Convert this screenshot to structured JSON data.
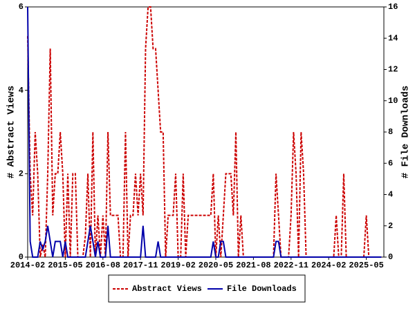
{
  "chart_data": {
    "type": "line",
    "x": [
      "2014-02",
      "2014-03",
      "2014-04",
      "2014-05",
      "2014-06",
      "2014-07",
      "2014-08",
      "2014-09",
      "2014-10",
      "2014-11",
      "2014-12",
      "2015-01",
      "2015-02",
      "2015-03",
      "2015-04",
      "2015-05",
      "2015-06",
      "2015-07",
      "2015-08",
      "2015-09",
      "2015-10",
      "2015-11",
      "2015-12",
      "2016-01",
      "2016-02",
      "2016-03",
      "2016-04",
      "2016-05",
      "2016-06",
      "2016-07",
      "2016-08",
      "2016-09",
      "2016-10",
      "2016-11",
      "2016-12",
      "2017-01",
      "2017-02",
      "2017-03",
      "2017-04",
      "2017-05",
      "2017-06",
      "2017-07",
      "2017-08",
      "2017-09",
      "2017-10",
      "2017-11",
      "2017-12",
      "2018-01",
      "2018-02",
      "2018-03",
      "2018-04",
      "2018-05",
      "2018-06",
      "2018-07",
      "2018-08",
      "2018-09",
      "2018-10",
      "2018-11",
      "2018-12",
      "2019-01",
      "2019-02",
      "2019-03",
      "2019-04",
      "2019-05",
      "2019-06",
      "2019-07",
      "2019-08",
      "2019-09",
      "2019-10",
      "2019-11",
      "2019-12",
      "2020-01",
      "2020-02",
      "2020-03",
      "2020-04",
      "2020-05",
      "2020-06",
      "2020-07",
      "2020-08",
      "2020-09",
      "2020-10",
      "2020-11",
      "2020-12",
      "2021-01",
      "2021-02",
      "2021-03",
      "2021-04",
      "2021-05",
      "2021-06",
      "2021-07",
      "2021-08",
      "2021-09",
      "2021-10",
      "2021-11",
      "2021-12",
      "2022-01",
      "2022-02",
      "2022-03",
      "2022-04",
      "2022-05",
      "2022-06",
      "2022-07",
      "2022-08",
      "2022-09",
      "2022-10",
      "2022-11",
      "2022-12",
      "2023-01",
      "2023-02",
      "2023-03",
      "2023-04",
      "2023-05",
      "2023-06",
      "2023-07",
      "2023-08",
      "2023-09",
      "2023-10",
      "2023-11",
      "2023-12",
      "2024-01",
      "2024-02",
      "2024-03",
      "2024-04",
      "2024-05",
      "2024-06",
      "2024-07",
      "2024-08",
      "2024-09",
      "2024-10",
      "2024-11",
      "2024-12",
      "2025-01",
      "2025-02",
      "2025-03",
      "2025-04",
      "2025-05",
      "2025-06",
      "2025-07",
      "2025-08",
      "2025-09",
      "2025-10",
      "2025-11"
    ],
    "series": [
      {
        "name": "Abstract Views",
        "color": "#cc0000",
        "dash": true,
        "values": [
          5.3,
          2,
          1,
          3,
          2,
          0,
          0.3,
          0,
          2,
          5,
          1,
          2,
          2,
          3,
          2,
          0,
          2,
          0,
          2,
          2,
          0,
          0,
          0,
          0.5,
          2,
          0,
          3,
          0,
          1,
          0,
          1,
          0,
          3,
          1,
          1,
          1,
          1,
          0,
          0,
          3,
          0,
          1,
          1,
          2,
          1,
          2,
          1,
          5,
          6,
          6,
          5,
          5,
          4,
          3,
          3,
          0,
          1,
          1,
          1,
          2,
          0,
          0,
          2,
          0,
          1,
          1,
          1,
          1,
          1,
          1,
          1,
          1,
          1,
          1,
          2,
          0,
          1,
          0,
          1,
          2,
          2,
          2,
          1,
          3,
          0,
          1,
          0,
          0,
          0,
          0,
          0,
          0,
          0,
          0,
          0,
          0,
          0,
          0,
          0,
          2,
          1,
          0,
          0,
          0,
          0,
          1,
          3,
          2,
          0,
          3,
          2,
          0,
          0,
          0,
          0,
          0,
          0,
          0,
          0,
          0,
          0,
          0,
          0,
          1,
          0,
          0,
          2,
          0,
          0,
          0,
          0,
          0,
          0,
          0,
          0,
          1,
          0,
          0,
          0,
          0,
          0,
          0
        ]
      },
      {
        "name": "File Downloads",
        "color": "#0000aa",
        "dash": false,
        "axis": "y2",
        "values": [
          16,
          1,
          0,
          0,
          0,
          1,
          0.5,
          1,
          2,
          1,
          0,
          1,
          1,
          1,
          0,
          1,
          0,
          0,
          0,
          0,
          0,
          0,
          0,
          0,
          1,
          2,
          1,
          0,
          1,
          0,
          0,
          0,
          2,
          0,
          0,
          0,
          0,
          0,
          0,
          0,
          0,
          0,
          0,
          0,
          0,
          0,
          2,
          0,
          0,
          0,
          0,
          0,
          1,
          0,
          0,
          0,
          0,
          0,
          0,
          0,
          0,
          0,
          0,
          0,
          0,
          0,
          0,
          0,
          0,
          0,
          0,
          0,
          0,
          0,
          1,
          0,
          0,
          1,
          1,
          0,
          0,
          0,
          0,
          0,
          0,
          0,
          0,
          0,
          0,
          0,
          0,
          0,
          0,
          0,
          0,
          0,
          0,
          0,
          0,
          1,
          1,
          0,
          0,
          0,
          0,
          0,
          0,
          0,
          0,
          0,
          0,
          0,
          0,
          0,
          0,
          0,
          0,
          0,
          0,
          0,
          0,
          0,
          0,
          0,
          0,
          0,
          0,
          0,
          0,
          0,
          0,
          0,
          0,
          0,
          0,
          0,
          0,
          0,
          0,
          0,
          0,
          0
        ]
      }
    ],
    "xlim": [
      "2014-02",
      "2025-12"
    ],
    "xticks": [
      "2014-02",
      "2015-05",
      "2016-08",
      "2017-11",
      "2019-02",
      "2020-05",
      "2021-08",
      "2022-11",
      "2024-02",
      "2025-05"
    ],
    "ylabel": "# Abstract Views",
    "ylim": [
      0,
      6
    ],
    "yticks": [
      0,
      2,
      4,
      6
    ],
    "y2label": "# File Downloads",
    "y2lim": [
      0,
      16
    ],
    "y2ticks": [
      0,
      2,
      4,
      6,
      8,
      10,
      12,
      14,
      16
    ]
  }
}
